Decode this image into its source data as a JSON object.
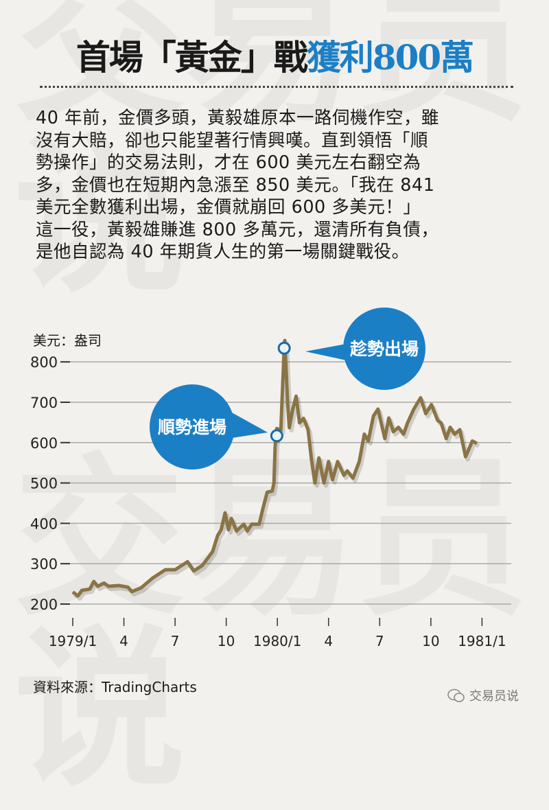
{
  "title": {
    "part_black": "首場「黃金」戰",
    "part_blue": "獲利800萬"
  },
  "body_lines": [
    "40 年前，金價多頭，黃毅雄原本一路伺機作空，雖",
    "沒有大賠，卻也只能望著行情興嘆。直到領悟「順",
    "勢操作」的交易法則，才在 600 美元左右翻空為",
    "多，金價也在短期內急漲至 850 美元。「我在 841",
    "美元全數獲利出場，金價就崩回 600 多美元！」",
    "這一役，黃毅雄賺進 800 多萬元，還清所有負債，",
    "是他自認為 40 年期貨人生的第一場關鍵戰役。"
  ],
  "source": "資料來源：TradingCharts",
  "brand": {
    "label": "交易员说",
    "icon": "wechat-icon"
  },
  "watermark": "交易员说",
  "colors": {
    "title_blue": "#1b7fc6",
    "bubble": "#1b7fc6",
    "line": "#8a7445",
    "grid": "#a9a9a9"
  },
  "chart_data": {
    "type": "line",
    "ylabel": "美元：盎司",
    "ylim": [
      200,
      800
    ],
    "yticks": [
      "800",
      "700",
      "600",
      "500",
      "400",
      "300",
      "200"
    ],
    "ytick_values": [
      800,
      700,
      600,
      500,
      400,
      300,
      200
    ],
    "xticks": [
      "1979/1",
      "4",
      "7",
      "10",
      "1980/1",
      "4",
      "7",
      "10",
      "1981/1"
    ],
    "xtick_dates": [
      "1979-01-01",
      "1979-04-01",
      "1979-07-01",
      "1979-10-01",
      "1980-01-01",
      "1980-04-01",
      "1980-07-01",
      "1980-10-01",
      "1981-01-01"
    ],
    "grid": true,
    "series": [
      {
        "x": [
          "1979-01-01",
          "1979-01-10",
          "1979-01-17",
          "1979-02-01",
          "1979-02-08",
          "1979-02-15",
          "1979-02-26",
          "1979-03-04",
          "1979-03-22",
          "1979-04-08",
          "1979-04-15",
          "1979-05-01",
          "1979-05-22",
          "1979-06-14",
          "1979-07-01",
          "1979-07-23",
          "1979-08-04",
          "1979-08-19",
          "1979-09-07",
          "1979-09-16",
          "1979-09-22",
          "1979-09-29",
          "1979-10-05",
          "1979-10-10",
          "1979-10-19",
          "1979-11-02",
          "1979-11-08",
          "1979-11-16",
          "1979-11-29",
          "1979-12-05",
          "1979-12-13",
          "1979-12-22",
          "1979-12-25",
          "1979-12-27",
          "1979-12-30",
          "1980-01-07",
          "1980-01-13",
          "1980-01-14",
          "1980-01-19",
          "1980-01-22",
          "1980-01-28",
          "1980-02-04",
          "1980-02-10",
          "1980-02-17",
          "1980-02-25",
          "1980-03-01",
          "1980-03-07",
          "1980-03-14",
          "1980-03-23",
          "1980-04-01",
          "1980-04-08",
          "1980-04-17",
          "1980-04-28",
          "1980-05-04",
          "1980-05-14",
          "1980-05-25",
          "1980-06-04",
          "1980-06-11",
          "1980-06-20",
          "1980-06-28",
          "1980-07-10",
          "1980-07-17",
          "1980-07-25",
          "1980-08-04",
          "1980-08-13",
          "1980-08-20",
          "1980-09-01",
          "1980-09-13",
          "1980-09-22",
          "1980-10-02",
          "1980-10-13",
          "1980-10-19",
          "1980-10-28",
          "1980-11-05",
          "1980-11-13",
          "1980-11-22",
          "1980-12-02",
          "1980-12-14",
          "1980-12-22"
        ],
        "y": [
          230,
          220,
          234,
          237,
          256,
          244,
          252,
          244,
          246,
          242,
          231,
          240,
          265,
          285,
          285,
          305,
          282,
          296,
          330,
          370,
          384,
          426,
          384,
          412,
          381,
          398,
          381,
          398,
          398,
          434,
          477,
          480,
          500,
          590,
          635,
          630,
          834,
          853,
          700,
          637,
          683,
          715,
          649,
          660,
          632,
          558,
          500,
          562,
          500,
          553,
          508,
          553,
          519,
          530,
          512,
          553,
          621,
          604,
          666,
          683,
          610,
          661,
          627,
          638,
          621,
          649,
          683,
          711,
          672,
          694,
          655,
          649,
          610,
          638,
          621,
          632,
          565,
          604,
          598
        ]
      }
    ],
    "annotations": [
      {
        "label": "順勢進場",
        "date": "1979-12-30",
        "value": 617
      },
      {
        "label": "趁勢出場",
        "date": "1980-01-13",
        "value": 834
      }
    ]
  }
}
